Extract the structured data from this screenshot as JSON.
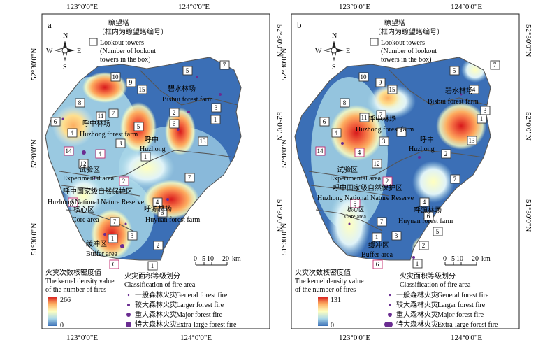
{
  "coords": {
    "top_left": "123°0'0\"E",
    "top_right": "124°0'0\"E",
    "bottom_left": "123°0'0\"E",
    "bottom_right": "124°0'0\"E",
    "lat_1": "52°30'0\"N",
    "lat_2": "52°0'0\"N",
    "lat_3": "51°30'0\"N"
  },
  "panel_a": {
    "letter": "a",
    "density_max": "266",
    "density_min": "0"
  },
  "panel_b": {
    "letter": "b",
    "density_max": "131",
    "density_min": "0"
  },
  "legend_tower": {
    "title_cn": "瞭望塔",
    "subtitle_cn": "（框内为瞭望塔编号）",
    "line1": "Lookout towers",
    "line2": "(Number of lookout",
    "line3": "towers in the box)"
  },
  "compass": {
    "n": "N",
    "s": "S",
    "e": "E",
    "w": "W"
  },
  "places": {
    "bishui_cn": "碧水林场",
    "bishui_en": "Bishui forest farm",
    "huzhong_farm_cn": "呼中林场",
    "huzhong_farm_en": "Huzhong forest farm",
    "huzhong_cn": "呼中",
    "huzhong_en": "Huzhong",
    "exp_cn": "试验区",
    "exp_en": "Experimental area",
    "reserve_cn": "呼中国家级自然保护区",
    "reserve_en": "Huzhong National Nature Reserve",
    "core_cn": "核心区",
    "core_en": "Core area",
    "huyuan_cn": "呼源林场",
    "huyuan_en": "Huyuan forest farm",
    "buffer_cn": "缓冲区",
    "buffer_en": "Buffer area"
  },
  "scale": {
    "ticks": [
      "0",
      "5",
      "10",
      "20"
    ],
    "unit": "km"
  },
  "density_legend": {
    "title_cn": "火灾次数核密度值",
    "title_en1": "The kernel density value",
    "title_en2": "of the number of fires"
  },
  "fire_class": {
    "title_cn": "火灾面积等级划分",
    "title_en": "Classification of fire area",
    "items": [
      {
        "cn": "一般森林火灾",
        "en": "General forest fire"
      },
      {
        "cn": "较大森林火灾",
        "en": "Larger forest fire"
      },
      {
        "cn": "重大森林火灾",
        "en": "Major forest fire"
      },
      {
        "cn": "特大森林火灾",
        "en": "Extra-large forest fire"
      }
    ]
  },
  "towers": [
    "1",
    "2",
    "3",
    "4",
    "5",
    "6",
    "7",
    "8",
    "9",
    "10",
    "11",
    "12",
    "13",
    "14",
    "15"
  ],
  "colors": {
    "high": "#d7191c",
    "mid_high": "#fdae61",
    "mid": "#ffffbf",
    "mid_low": "#abd9e9",
    "low": "#3b6fb6",
    "fire_point": "#6a2c91"
  }
}
